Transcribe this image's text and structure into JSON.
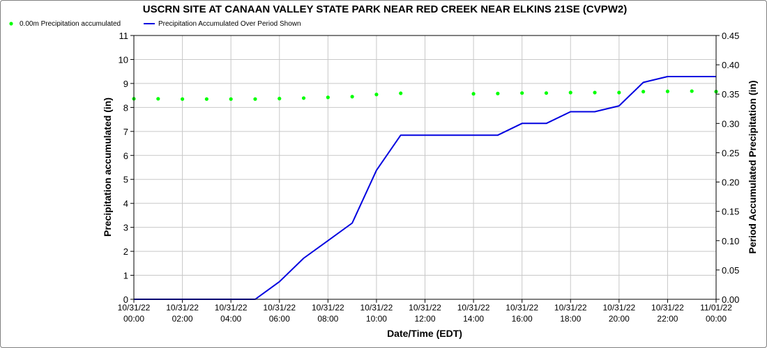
{
  "chart_data": {
    "type": "line",
    "title": "USCRN SITE AT CANAAN VALLEY STATE PARK NEAR RED CREEK NEAR ELKINS 21SE (CVPW2)",
    "xlabel": "Date/Time (EDT)",
    "ylabel_left": "Precipitation accumulated (in)",
    "ylabel_right": "Period Accumulated Precipitation (in)",
    "ylim_left": [
      0,
      11
    ],
    "ylim_right": [
      0,
      0.45
    ],
    "yticks_left": [
      "0",
      "1",
      "2",
      "3",
      "4",
      "5",
      "6",
      "7",
      "8",
      "9",
      "10",
      "11"
    ],
    "yticks_right": [
      "0.00",
      "0.05",
      "0.10",
      "0.15",
      "0.20",
      "0.25",
      "0.30",
      "0.35",
      "0.40",
      "0.45"
    ],
    "xticks": [
      {
        "date": "10/31/22",
        "time": "00:00"
      },
      {
        "date": "10/31/22",
        "time": "02:00"
      },
      {
        "date": "10/31/22",
        "time": "04:00"
      },
      {
        "date": "10/31/22",
        "time": "06:00"
      },
      {
        "date": "10/31/22",
        "time": "08:00"
      },
      {
        "date": "10/31/22",
        "time": "10:00"
      },
      {
        "date": "10/31/22",
        "time": "12:00"
      },
      {
        "date": "10/31/22",
        "time": "14:00"
      },
      {
        "date": "10/31/22",
        "time": "16:00"
      },
      {
        "date": "10/31/22",
        "time": "18:00"
      },
      {
        "date": "10/31/22",
        "time": "20:00"
      },
      {
        "date": "10/31/22",
        "time": "22:00"
      },
      {
        "date": "11/01/22",
        "time": "00:00"
      }
    ],
    "grid": true,
    "legend_position": "top-left",
    "series": [
      {
        "name": "0.00m Precipitation accumulated",
        "style": "points",
        "color": "#00ff00",
        "axis": "left",
        "x": [
          "10/31/22 00:00",
          "10/31/22 01:00",
          "10/31/22 02:00",
          "10/31/22 03:00",
          "10/31/22 04:00",
          "10/31/22 05:00",
          "10/31/22 06:00",
          "10/31/22 07:00",
          "10/31/22 08:00",
          "10/31/22 09:00",
          "10/31/22 10:00",
          "10/31/22 11:00",
          "10/31/22 14:00",
          "10/31/22 15:00",
          "10/31/22 16:00",
          "10/31/22 17:00",
          "10/31/22 18:00",
          "10/31/22 19:00",
          "10/31/22 20:00",
          "10/31/22 21:00",
          "10/31/22 22:00",
          "10/31/22 23:00",
          "11/01/22 00:00"
        ],
        "values": [
          8.36,
          8.36,
          8.35,
          8.35,
          8.35,
          8.35,
          8.37,
          8.39,
          8.42,
          8.45,
          8.54,
          8.59,
          8.57,
          8.58,
          8.6,
          8.6,
          8.62,
          8.62,
          8.62,
          8.66,
          8.67,
          8.68,
          8.66
        ]
      },
      {
        "name": "Precipitation Accumulated Over Period Shown",
        "style": "line",
        "color": "#0000e0",
        "axis": "right",
        "x": [
          "10/31/22 00:00",
          "10/31/22 01:00",
          "10/31/22 02:00",
          "10/31/22 03:00",
          "10/31/22 04:00",
          "10/31/22 05:00",
          "10/31/22 06:00",
          "10/31/22 07:00",
          "10/31/22 08:00",
          "10/31/22 09:00",
          "10/31/22 10:00",
          "10/31/22 11:00",
          "10/31/22 12:00",
          "10/31/22 13:00",
          "10/31/22 14:00",
          "10/31/22 15:00",
          "10/31/22 16:00",
          "10/31/22 17:00",
          "10/31/22 18:00",
          "10/31/22 19:00",
          "10/31/22 20:00",
          "10/31/22 21:00",
          "10/31/22 22:00",
          "10/31/22 23:00",
          "11/01/22 00:00"
        ],
        "values": [
          0.0,
          0.0,
          0.0,
          0.0,
          0.0,
          0.0,
          0.03,
          0.07,
          0.1,
          0.13,
          0.22,
          0.28,
          0.28,
          0.28,
          0.28,
          0.28,
          0.3,
          0.3,
          0.32,
          0.32,
          0.33,
          0.37,
          0.38,
          0.38,
          0.38
        ]
      }
    ]
  }
}
